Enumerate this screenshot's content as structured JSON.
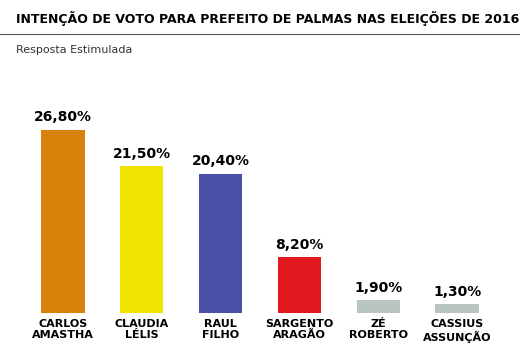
{
  "chart_data": {
    "type": "bar",
    "title": "INTENÇÃO DE VOTO PARA PREFEITO DE PALMAS NAS ELEIÇÕES DE 2016",
    "subtitle": "Resposta Estimulada",
    "categories": [
      "CARLOS\nAMASTHA",
      "CLAUDIA\nLÉLIS",
      "RAUL\nFILHO",
      "SARGENTO\nARAGÃO",
      "ZÉ\nROBERTO",
      "CASSIUS\nASSUNÇÃO"
    ],
    "values": [
      26.8,
      21.5,
      20.4,
      8.2,
      1.9,
      1.3
    ],
    "value_labels": [
      "26,80%",
      "21,50%",
      "20,40%",
      "8,20%",
      "1,90%",
      "1,30%"
    ],
    "colors": [
      "#d9820b",
      "#f2e400",
      "#4a4fa8",
      "#e3171f",
      "#b9c6c0",
      "#b9c6c0"
    ],
    "ylim": [
      0,
      30
    ],
    "data_labels": true,
    "tick_labels": "x",
    "grid": false
  }
}
